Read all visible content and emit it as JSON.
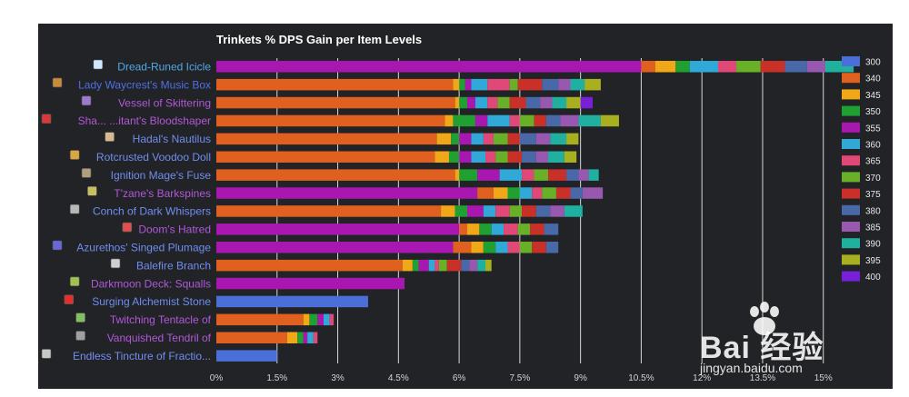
{
  "chart_data": {
    "type": "bar",
    "orientation": "horizontal",
    "stacked": true,
    "title": "Trinkets % DPS Gain per Item Levels",
    "xlim": [
      0,
      15.5
    ],
    "xticks": [
      "0%",
      "1.5%",
      "3%",
      "4.5%",
      "6%",
      "7.5%",
      "9%",
      "10.5%",
      "12%",
      "13.5%",
      "15%"
    ],
    "xtick_values": [
      0,
      1.5,
      3,
      4.5,
      6,
      7.5,
      9,
      10.5,
      12,
      13.5,
      15
    ],
    "grid": true,
    "legend_position": "right",
    "series": [
      {
        "name": "300",
        "color": "#4a6fd8"
      },
      {
        "name": "340",
        "color": "#e06020"
      },
      {
        "name": "345",
        "color": "#f0a818"
      },
      {
        "name": "350",
        "color": "#20a030"
      },
      {
        "name": "355",
        "color": "#a818b0"
      },
      {
        "name": "360",
        "color": "#30a8d8"
      },
      {
        "name": "365",
        "color": "#e04878"
      },
      {
        "name": "370",
        "color": "#68b028"
      },
      {
        "name": "375",
        "color": "#c83028"
      },
      {
        "name": "380",
        "color": "#4868a8"
      },
      {
        "name": "385",
        "color": "#9858b0"
      },
      {
        "name": "390",
        "color": "#20b0a0"
      },
      {
        "name": "395",
        "color": "#a8b020"
      },
      {
        "name": "400",
        "color": "#7820d8"
      }
    ],
    "items": [
      {
        "label": "Dread-Runed Icicle",
        "label_color": "#4fa8e8",
        "icon": "frost-icon",
        "icon_color": "#cfe8ff",
        "base_series": "355",
        "values": [
          10.5,
          0.35,
          0.5,
          0.35,
          0.7,
          0.45,
          0.6,
          0.6,
          0.55,
          0.45,
          0.7
        ]
      },
      {
        "label": "Lady Waycrest's Music Box",
        "label_color": "#4f6fe8",
        "icon": "music-box-icon",
        "icon_color": "#c98c3a",
        "base_series": "340",
        "values": [
          5.85,
          0.15,
          0.15,
          0.15,
          0.4,
          0.55,
          0.2,
          0.6,
          0.4,
          0.3,
          0.35,
          0.4
        ]
      },
      {
        "label": "Vessel of Skittering",
        "label_color": "#b058d8",
        "icon": "vessel-icon",
        "icon_color": "#9c7ad0",
        "base_series": "340",
        "values": [
          5.9,
          0.1,
          0.2,
          0.2,
          0.3,
          0.25,
          0.3,
          0.4,
          0.35,
          0.3,
          0.35,
          0.35,
          0.3
        ]
      },
      {
        "label": "Sha... ...itant's Bloodshaper",
        "label_color": "#b058d8",
        "icon": "bloodshaper-icon",
        "icon_color": "#d83a3a",
        "base_series": "340",
        "values": [
          5.65,
          0.2,
          0.55,
          0.3,
          0.55,
          0.25,
          0.35,
          0.3,
          0.35,
          0.45,
          0.55,
          0.45
        ]
      },
      {
        "label": "Hadal's Nautilus",
        "label_color": "#6f8ef0",
        "icon": "nautilus-icon",
        "icon_color": "#d8b890",
        "base_series": "340",
        "values": [
          5.45,
          0.35,
          0.2,
          0.3,
          0.3,
          0.25,
          0.35,
          0.3,
          0.4,
          0.35,
          0.4,
          0.3
        ]
      },
      {
        "label": "Rotcrusted Voodoo Doll",
        "label_color": "#6f8ef0",
        "icon": "voodoo-doll-icon",
        "icon_color": "#d8a840",
        "base_series": "340",
        "values": [
          5.4,
          0.35,
          0.25,
          0.3,
          0.35,
          0.25,
          0.3,
          0.35,
          0.35,
          0.3,
          0.4,
          0.3
        ]
      },
      {
        "label": "Ignition Mage's Fuse",
        "label_color": "#6f8ef0",
        "icon": "fuse-icon",
        "icon_color": "#b0a080",
        "base_series": "340",
        "values": [
          5.9,
          0.1,
          0.45,
          0.55,
          0.55,
          0.3,
          0.35,
          0.45,
          0.3,
          0.25,
          0.25
        ]
      },
      {
        "label": "T'zane's Barkspines",
        "label_color": "#b058d8",
        "icon": "barkspines-icon",
        "icon_color": "#c8c060",
        "base_series": "355",
        "values": [
          6.45,
          0.4,
          0.35,
          0.3,
          0.3,
          0.25,
          0.35,
          0.35,
          0.3,
          0.5
        ]
      },
      {
        "label": "Conch of Dark Whispers",
        "label_color": "#6f8ef0",
        "icon": "conch-icon",
        "icon_color": "#b8b8b8",
        "base_series": "340",
        "values": [
          5.55,
          0.35,
          0.3,
          0.4,
          0.3,
          0.35,
          0.3,
          0.35,
          0.35,
          0.35,
          0.45
        ]
      },
      {
        "label": "Doom's Hatred",
        "label_color": "#b058d8",
        "icon": "doom-icon",
        "icon_color": "#e05050",
        "base_series": "355",
        "values": [
          6.0,
          0.2,
          0.3,
          0.3,
          0.3,
          0.35,
          0.3,
          0.35,
          0.35
        ]
      },
      {
        "label": "Azurethos' Singed Plumage",
        "label_color": "#6f8ef0",
        "icon": "plumage-icon",
        "icon_color": "#6868d8",
        "base_series": "355",
        "values": [
          5.85,
          0.45,
          0.3,
          0.3,
          0.3,
          0.3,
          0.3,
          0.35,
          0.3
        ]
      },
      {
        "label": "Balefire Branch",
        "label_color": "#6f8ef0",
        "icon": "branch-icon",
        "icon_color": "#d0d0d0",
        "base_series": "340",
        "values": [
          4.6,
          0.25,
          0.15,
          0.25,
          0.15,
          0.1,
          0.2,
          0.35,
          0.2,
          0.2,
          0.2,
          0.15
        ]
      },
      {
        "label": "Darkmoon Deck: Squalls",
        "label_color": "#b058d8",
        "icon": "deck-icon",
        "icon_color": "#a0c050",
        "base_series": "355",
        "values": [
          4.65
        ]
      },
      {
        "label": "Surging Alchemist Stone",
        "label_color": "#6f8ef0",
        "icon": "alchemist-stone-icon",
        "icon_color": "#e03030",
        "base_series": "300",
        "values": [
          3.75
        ]
      },
      {
        "label": "Twitching Tentacle of",
        "label_color": "#b058d8",
        "icon": "tentacle-icon",
        "icon_color": "#80c060",
        "base_series": "340",
        "values": [
          2.15,
          0.15,
          0.2,
          0.15,
          0.15,
          0.1
        ]
      },
      {
        "label": "Vanquished Tendril of",
        "label_color": "#b058d8",
        "icon": "tendril-icon",
        "icon_color": "#a0a0a0",
        "base_series": "340",
        "values": [
          1.75,
          0.25,
          0.15,
          0.1,
          0.15,
          0.1
        ]
      },
      {
        "label": "Endless Tincture of Fractio...",
        "label_color": "#6f8ef0",
        "icon": "tincture-icon",
        "icon_color": "#c8c8c8",
        "base_series": "300",
        "values": [
          1.5
        ]
      }
    ]
  },
  "watermark": {
    "brand": "Bai 经验",
    "url": "jingyan.baidu.com"
  }
}
